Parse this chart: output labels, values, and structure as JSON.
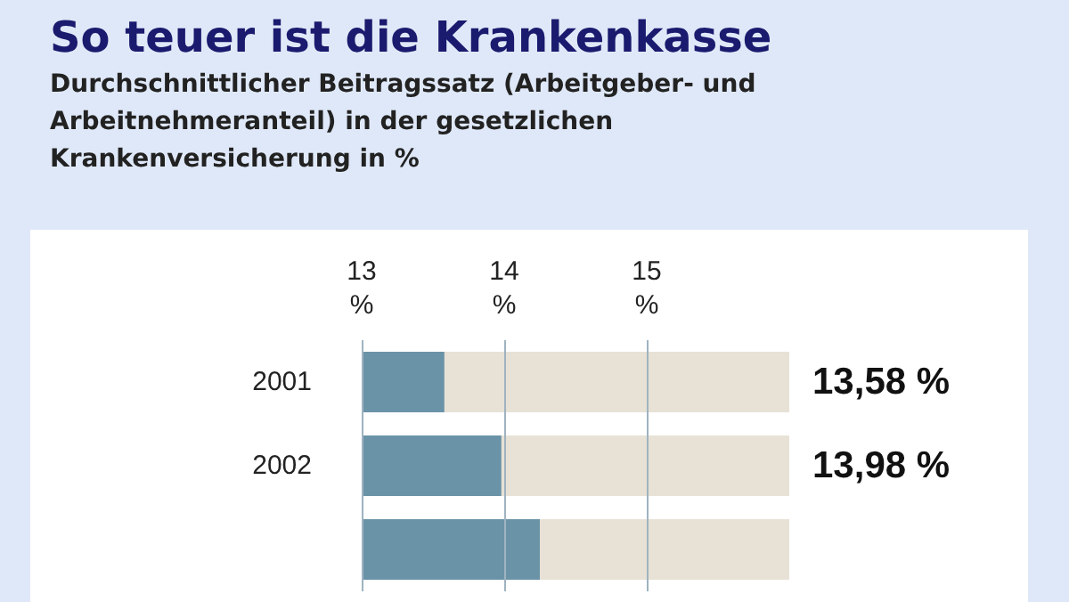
{
  "chart_data": {
    "type": "bar",
    "orientation": "horizontal",
    "title": "So teuer ist die Krankenkasse",
    "subtitle": "Durchschnittlicher Beitragssatz (Arbeitgeber- und Arbeitnehmeranteil) in der gesetzlichen Krankenversicherung in %",
    "categories": [
      "2001",
      "2002",
      null
    ],
    "values": [
      13.58,
      13.98,
      14.25
    ],
    "value_labels": [
      "13,58 %",
      "13,98 %",
      null
    ],
    "color": "#6b93a8",
    "xlim": [
      13,
      16
    ],
    "xticks": [
      {
        "value": 13,
        "label": "13 %"
      },
      {
        "value": 14,
        "label": "14 %"
      },
      {
        "value": 15,
        "label": "15 %"
      }
    ],
    "grid": "x"
  }
}
